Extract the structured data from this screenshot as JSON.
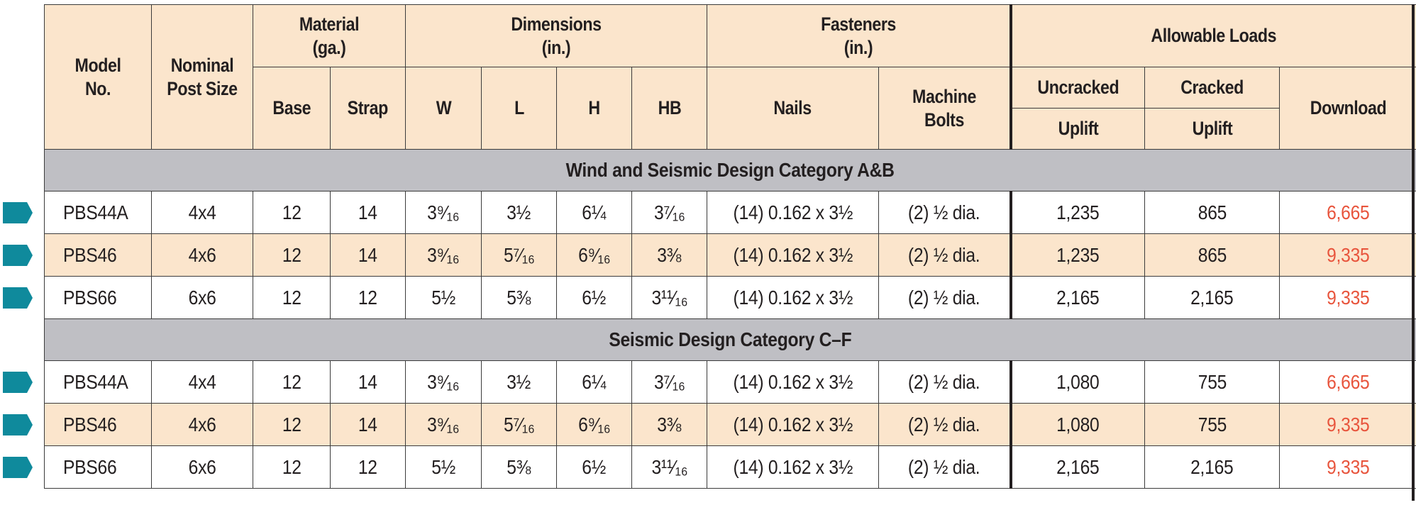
{
  "header": {
    "model_no": "Model No.",
    "nominal_post_size": "Nominal Post Size",
    "material": "Material (ga.)",
    "material_base": "Base",
    "material_strap": "Strap",
    "dimensions": "Dimensions (in.)",
    "dim_w": "W",
    "dim_l": "L",
    "dim_h": "H",
    "dim_hb": "HB",
    "fasteners": "Fasteners (in.)",
    "fastener_nails": "Nails",
    "fastener_bolts": "Machine Bolts",
    "allowable_loads": "Allowable Loads",
    "uncracked": "Uncracked",
    "cracked": "Cracked",
    "uplift_1": "Uplift",
    "uplift_2": "Uplift",
    "download": "Download"
  },
  "sections": [
    {
      "title": "Wind and Seismic Design Category A&B",
      "rows": [
        {
          "model": "PBS44A",
          "post": "4x4",
          "base": "12",
          "strap": "14",
          "w": "3⁹⁄₁₆",
          "l": "3½",
          "h": "6¼",
          "hb": "3⁷⁄₁₆",
          "nails": "(14) 0.162 x 3½",
          "bolts": "(2) ½ dia.",
          "uncracked": "1,235",
          "cracked": "865",
          "download": "6,665"
        },
        {
          "model": "PBS46",
          "post": "4x6",
          "base": "12",
          "strap": "14",
          "w": "3⁹⁄₁₆",
          "l": "5⁷⁄₁₆",
          "h": "6⁹⁄₁₆",
          "hb": "3⅜",
          "nails": "(14) 0.162 x 3½",
          "bolts": "(2) ½ dia.",
          "uncracked": "1,235",
          "cracked": "865",
          "download": "9,335"
        },
        {
          "model": "PBS66",
          "post": "6x6",
          "base": "12",
          "strap": "12",
          "w": "5½",
          "l": "5⅜",
          "h": "6½",
          "hb": "3¹¹⁄₁₆",
          "nails": "(14) 0.162 x 3½",
          "bolts": "(2) ½ dia.",
          "uncracked": "2,165",
          "cracked": "2,165",
          "download": "9,335"
        }
      ]
    },
    {
      "title": "Seismic Design Category C–F",
      "rows": [
        {
          "model": "PBS44A",
          "post": "4x4",
          "base": "12",
          "strap": "14",
          "w": "3⁹⁄₁₆",
          "l": "3½",
          "h": "6¼",
          "hb": "3⁷⁄₁₆",
          "nails": "(14) 0.162 x 3½",
          "bolts": "(2) ½ dia.",
          "uncracked": "1,080",
          "cracked": "755",
          "download": "6,665"
        },
        {
          "model": "PBS46",
          "post": "4x6",
          "base": "12",
          "strap": "14",
          "w": "3⁹⁄₁₆",
          "l": "5⁷⁄₁₆",
          "h": "6⁹⁄₁₆",
          "hb": "3⅜",
          "nails": "(14) 0.162 x 3½",
          "bolts": "(2) ½ dia.",
          "uncracked": "1,080",
          "cracked": "755",
          "download": "9,335"
        },
        {
          "model": "PBS66",
          "post": "6x6",
          "base": "12",
          "strap": "12",
          "w": "5½",
          "l": "5⅜",
          "h": "6½",
          "hb": "3¹¹⁄₁₆",
          "nails": "(14) 0.162 x 3½",
          "bolts": "(2) ½ dia.",
          "uncracked": "2,165",
          "cracked": "2,165",
          "download": "9,335"
        }
      ]
    }
  ],
  "colors": {
    "header_bg": "#fbe5cc",
    "section_bg": "#bfbfc4",
    "download_text": "#e8553d",
    "marker": "#0f8a9c"
  },
  "icons": {
    "row_marker": "pentagon-arrow-icon"
  }
}
